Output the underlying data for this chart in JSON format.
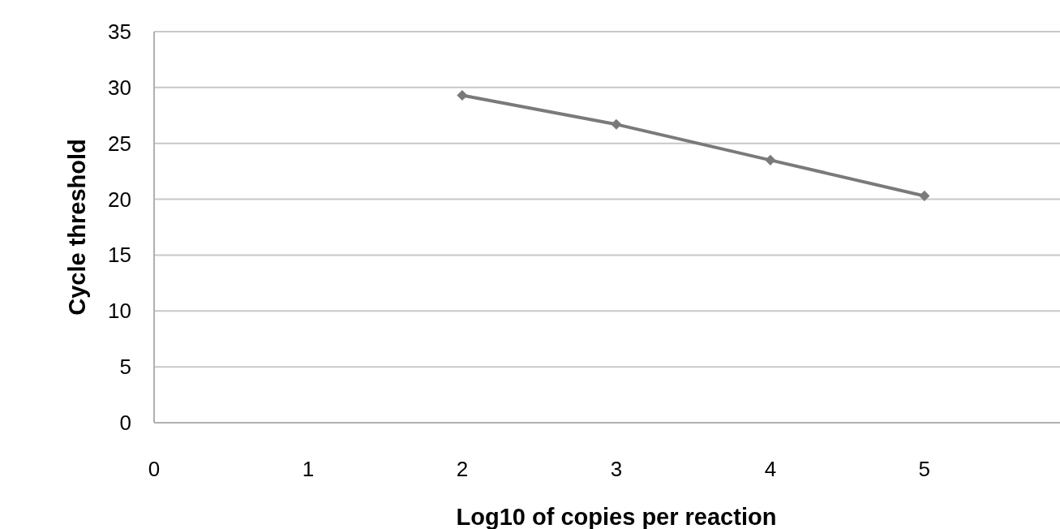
{
  "chart_data": {
    "type": "line",
    "xlabel": "Log10 of copies per reaction",
    "ylabel": "Cycle threshold",
    "series": [
      {
        "color": "#7a7a7a",
        "x": [
          2,
          3,
          4,
          5
        ],
        "values": [
          29.3,
          26.7,
          23.5,
          20.3
        ]
      }
    ],
    "xlim": [
      0,
      5.88
    ],
    "xticks": [
      0,
      1,
      2,
      3,
      4,
      5
    ],
    "ylim": [
      0,
      35
    ],
    "yticks": [
      0,
      5,
      10,
      15,
      20,
      25,
      30,
      35
    ],
    "grid": "y",
    "marker": "diamond",
    "line_style": "solid"
  }
}
